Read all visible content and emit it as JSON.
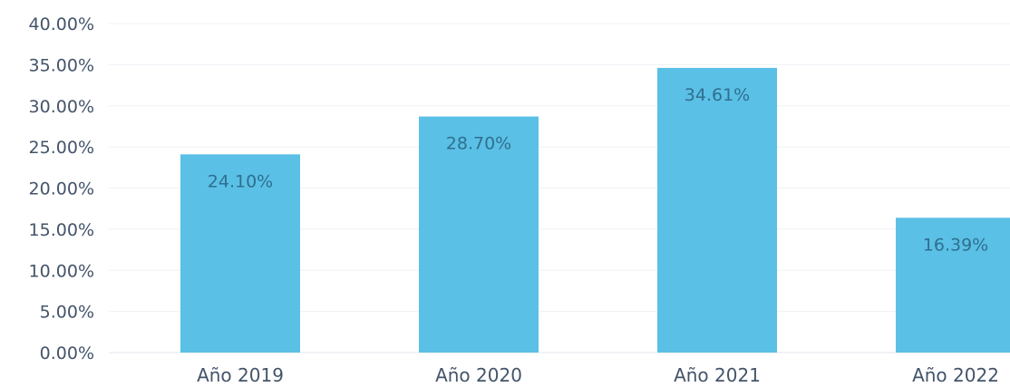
{
  "chart_data": {
    "type": "bar",
    "title": "",
    "xlabel": "",
    "ylabel": "",
    "categories": [
      "Año 2019",
      "Año 2020",
      "Año 2021",
      "Año 2022"
    ],
    "values": [
      24.1,
      28.7,
      34.61,
      16.39
    ],
    "data_labels": [
      "24.10%",
      "28.70%",
      "34.61%",
      "16.39%"
    ],
    "ylim": [
      0,
      40
    ],
    "yticks": [
      0,
      5,
      10,
      15,
      20,
      25,
      30,
      35,
      40
    ],
    "ytick_labels": [
      "0.00%",
      "5.00%",
      "10.00%",
      "15.00%",
      "20.00%",
      "25.00%",
      "30.00%",
      "35.00%",
      "40.00%"
    ],
    "grid": true,
    "legend": "none",
    "colors": {
      "bar": "#5bc0e6",
      "text": "#44546a",
      "data_label": "#2f6f8f"
    }
  }
}
